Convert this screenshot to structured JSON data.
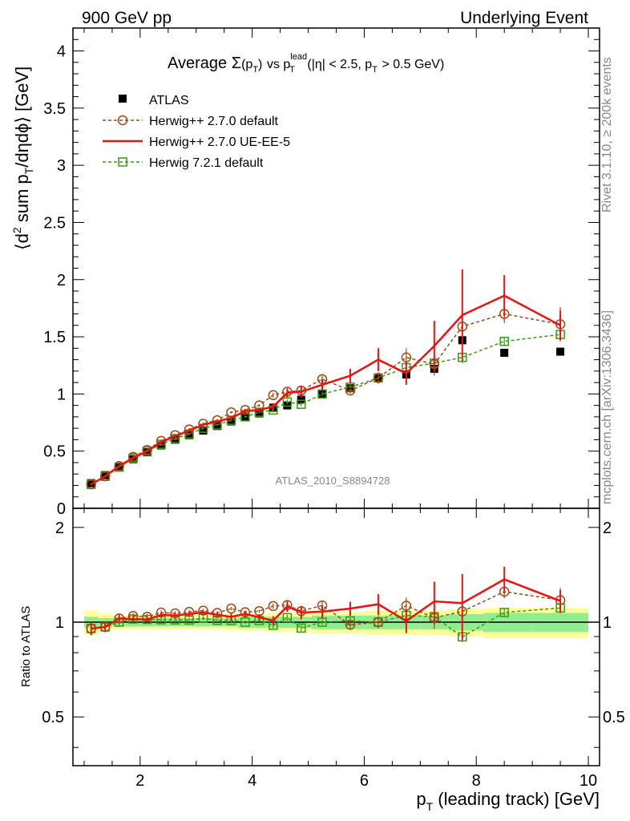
{
  "header": {
    "left": "900 GeV pp",
    "right": "Underlying Event"
  },
  "side_labels": {
    "rivet": "Rivet 3.1.10, ≥ 200k events",
    "mcplots": "mcplots.cern.ch [arXiv:1306.3436]"
  },
  "plot_title": {
    "prefix": "Average",
    "sigma": "Σ",
    "paren": "(p",
    "paren_sub": "T",
    "paren_close": ")",
    "vs": "vs p",
    "vs_sup": "lead",
    "vs_sub": "T",
    "cond": "(|η| < 2.5, p",
    "cond_sub": "T",
    "cond_tail": "> 0.5 GeV)"
  },
  "watermark": "ATLAS_2010_S8894728",
  "ylabel_main": {
    "a": "⟨d",
    "a_sup": "2",
    "b": " sum p",
    "b_sub": "T",
    "c": "/dηdϕ⟩ [GeV]"
  },
  "ylabel_ratio": "Ratio to ATLAS",
  "xlabel": {
    "a": "p",
    "a_sub": "T",
    "b": " (leading track) [GeV]"
  },
  "colors": {
    "atlas": "#000000",
    "herwig_default": "#a04a10",
    "herwig_ueee5": "#ee1111",
    "herwig721": "#3a9a10",
    "band_inner": "#90ee90",
    "band_outer": "#ffff99"
  },
  "chart_data": {
    "type": "scatter",
    "xlim": [
      0.8,
      10.2
    ],
    "ylim_main": [
      0,
      4.2
    ],
    "ylim_ratio": [
      0.35,
      2.3
    ],
    "x_ticks": [
      "2",
      "4",
      "6",
      "8",
      "10"
    ],
    "y_ticks_main": [
      "0",
      "0.5",
      "1",
      "1.5",
      "2",
      "2.5",
      "3",
      "3.5",
      "4"
    ],
    "y_ticks_ratio": [
      "0.5",
      "1",
      "2"
    ],
    "x": [
      1.125,
      1.375,
      1.625,
      1.875,
      2.125,
      2.375,
      2.625,
      2.875,
      3.125,
      3.375,
      3.625,
      3.875,
      4.125,
      4.375,
      4.625,
      4.875,
      5.25,
      5.75,
      6.25,
      6.75,
      7.25,
      7.75,
      8.5,
      9.5
    ],
    "legend": [
      "ATLAS",
      "Herwig++ 2.7.0 default",
      "Herwig++ 2.7.0 UE-EE-5",
      "Herwig 7.2.1 default"
    ],
    "series": [
      {
        "name": "ATLAS",
        "style": "marker",
        "values": [
          0.22,
          0.29,
          0.36,
          0.43,
          0.49,
          0.55,
          0.6,
          0.64,
          0.68,
          0.72,
          0.76,
          0.8,
          0.83,
          0.88,
          0.9,
          0.95,
          1.0,
          1.05,
          1.14,
          1.17,
          1.22,
          1.47,
          1.36,
          1.37
        ],
        "ratio_band_inner": [
          0.04,
          0.03,
          0.03,
          0.03,
          0.03,
          0.03,
          0.03,
          0.03,
          0.03,
          0.03,
          0.03,
          0.04,
          0.04,
          0.04,
          0.04,
          0.04,
          0.05,
          0.05,
          0.05,
          0.05,
          0.05,
          0.06,
          0.07,
          0.07
        ],
        "ratio_band_outer": [
          0.09,
          0.06,
          0.05,
          0.05,
          0.05,
          0.05,
          0.05,
          0.05,
          0.05,
          0.05,
          0.06,
          0.06,
          0.06,
          0.07,
          0.07,
          0.07,
          0.08,
          0.08,
          0.09,
          0.09,
          0.09,
          0.1,
          0.11,
          0.11
        ]
      },
      {
        "name": "Herwig++ 2.7.0 default",
        "style": "dashed-circle",
        "values": [
          0.21,
          0.28,
          0.37,
          0.45,
          0.51,
          0.59,
          0.64,
          0.69,
          0.74,
          0.77,
          0.84,
          0.86,
          0.9,
          0.99,
          1.02,
          1.03,
          1.13,
          1.03,
          1.14,
          1.32,
          1.26,
          1.59,
          1.7,
          1.61
        ],
        "errors": [
          0.01,
          0.01,
          0.01,
          0.01,
          0.01,
          0.01,
          0.01,
          0.01,
          0.01,
          0.01,
          0.01,
          0.01,
          0.01,
          0.02,
          0.02,
          0.02,
          0.03,
          0.03,
          0.05,
          0.08,
          0.1,
          0.1,
          0.08,
          0.15
        ]
      },
      {
        "name": "Herwig++ 2.7.0 UE-EE-5",
        "style": "solid-line",
        "values": [
          0.21,
          0.28,
          0.37,
          0.44,
          0.5,
          0.58,
          0.63,
          0.68,
          0.73,
          0.76,
          0.79,
          0.85,
          0.86,
          0.89,
          1.01,
          1.02,
          1.08,
          1.16,
          1.3,
          1.18,
          1.42,
          1.69,
          1.86,
          1.6
        ],
        "errors": [
          0.01,
          0.01,
          0.01,
          0.01,
          0.01,
          0.01,
          0.01,
          0.01,
          0.01,
          0.01,
          0.02,
          0.02,
          0.02,
          0.03,
          0.04,
          0.05,
          0.05,
          0.06,
          0.1,
          0.1,
          0.22,
          0.4,
          0.18,
          0.13
        ]
      },
      {
        "name": "Herwig 7.2.1 default",
        "style": "dashed-square",
        "values": [
          0.21,
          0.28,
          0.36,
          0.44,
          0.5,
          0.56,
          0.61,
          0.65,
          0.7,
          0.73,
          0.77,
          0.8,
          0.84,
          0.86,
          0.93,
          0.91,
          1.0,
          1.06,
          1.14,
          1.23,
          1.27,
          1.32,
          1.46,
          1.52
        ],
        "errors": [
          0.01,
          0.01,
          0.01,
          0.01,
          0.01,
          0.01,
          0.01,
          0.01,
          0.01,
          0.01,
          0.01,
          0.01,
          0.01,
          0.02,
          0.02,
          0.02,
          0.02,
          0.03,
          0.04,
          0.05,
          0.06,
          0.05,
          0.04,
          0.05
        ]
      }
    ]
  }
}
